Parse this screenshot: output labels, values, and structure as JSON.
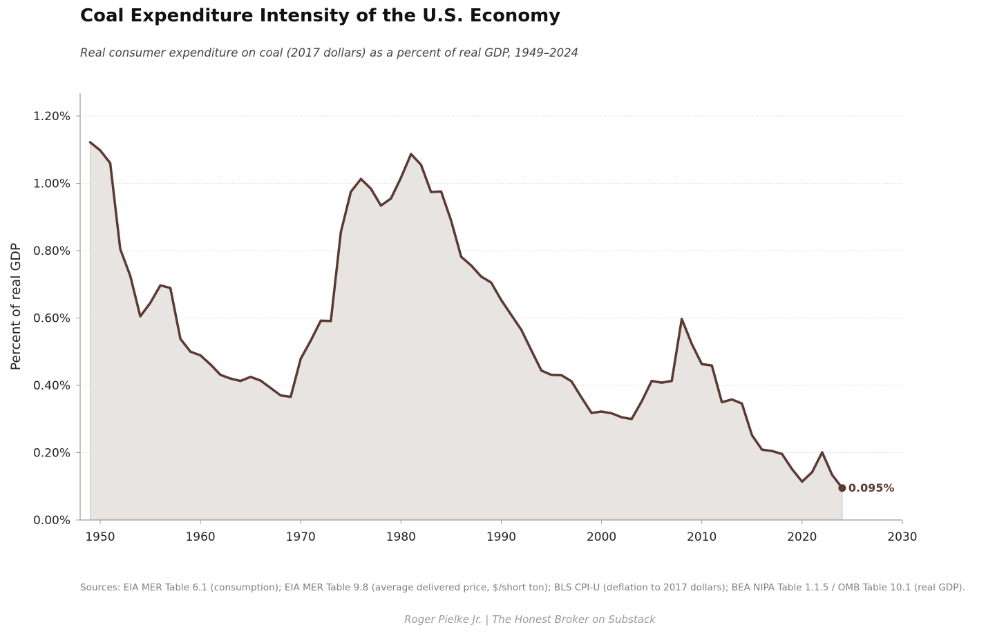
{
  "title": "Coal Expenditure Intensity of the U.S. Economy",
  "subtitle": "Real consumer expenditure on coal (2017 dollars) as a percent of real GDP, 1949–2024",
  "sources": "Sources: EIA MER Table 6.1 (consumption); EIA MER Table 9.8 (average delivered price, $/short ton); BLS CPI-U (deflation to 2017 dollars); BEA NIPA Table 1.1.5 / OMB Table 10.1 (real GDP).",
  "credit": "Roger Pielke Jr.  |  The Honest Broker on Substack",
  "colors": {
    "line": "#5a3a32",
    "fill": "#e8e4e1",
    "grid": "#d4d4d4",
    "axis": "#999999"
  },
  "chart_data": {
    "type": "area",
    "title": "Coal Expenditure Intensity of the U.S. Economy",
    "xlabel": "",
    "ylabel": "Percent of real GDP",
    "xlim": [
      1948,
      2030
    ],
    "ylim": [
      0,
      1.27
    ],
    "grid": "horizontal dotted",
    "x_ticks": [
      1950,
      1960,
      1970,
      1980,
      1990,
      2000,
      2010,
      2020,
      2030
    ],
    "x_tick_labels": [
      "1950",
      "1960",
      "1970",
      "1980",
      "1990",
      "2000",
      "2010",
      "2020",
      "2030"
    ],
    "y_ticks": [
      0,
      0.2,
      0.4,
      0.6,
      0.8,
      1.0,
      1.2
    ],
    "y_tick_labels": [
      "0.00%",
      "0.20%",
      "0.40%",
      "0.60%",
      "0.80%",
      "1.00%",
      "1.20%"
    ],
    "end_label": "0.095%",
    "series": [
      {
        "name": "Coal expenditure as % of real GDP",
        "x": [
          1949,
          1950,
          1951,
          1952,
          1953,
          1954,
          1955,
          1956,
          1957,
          1958,
          1959,
          1960,
          1961,
          1962,
          1963,
          1964,
          1965,
          1966,
          1967,
          1968,
          1969,
          1970,
          1971,
          1972,
          1973,
          1974,
          1975,
          1976,
          1977,
          1978,
          1979,
          1980,
          1981,
          1982,
          1983,
          1984,
          1985,
          1986,
          1987,
          1988,
          1989,
          1990,
          1991,
          1992,
          1993,
          1994,
          1995,
          1996,
          1997,
          1998,
          1999,
          2000,
          2001,
          2002,
          2003,
          2004,
          2005,
          2006,
          2007,
          2008,
          2009,
          2010,
          2011,
          2012,
          2013,
          2014,
          2015,
          2016,
          2017,
          2018,
          2019,
          2020,
          2021,
          2022,
          2023,
          2024
        ],
        "values": [
          1.122,
          1.098,
          1.06,
          0.805,
          0.725,
          0.605,
          0.645,
          0.697,
          0.689,
          0.538,
          0.5,
          0.489,
          0.462,
          0.431,
          0.42,
          0.413,
          0.425,
          0.414,
          0.392,
          0.37,
          0.366,
          0.479,
          0.533,
          0.592,
          0.591,
          0.855,
          0.975,
          1.013,
          0.984,
          0.934,
          0.955,
          1.017,
          1.087,
          1.055,
          0.974,
          0.976,
          0.889,
          0.782,
          0.756,
          0.723,
          0.705,
          0.653,
          0.609,
          0.565,
          0.504,
          0.444,
          0.431,
          0.43,
          0.412,
          0.364,
          0.318,
          0.322,
          0.317,
          0.305,
          0.3,
          0.352,
          0.413,
          0.408,
          0.413,
          0.597,
          0.523,
          0.463,
          0.459,
          0.35,
          0.358,
          0.346,
          0.252,
          0.209,
          0.205,
          0.196,
          0.151,
          0.114,
          0.142,
          0.201,
          0.134,
          0.095
        ]
      }
    ]
  }
}
